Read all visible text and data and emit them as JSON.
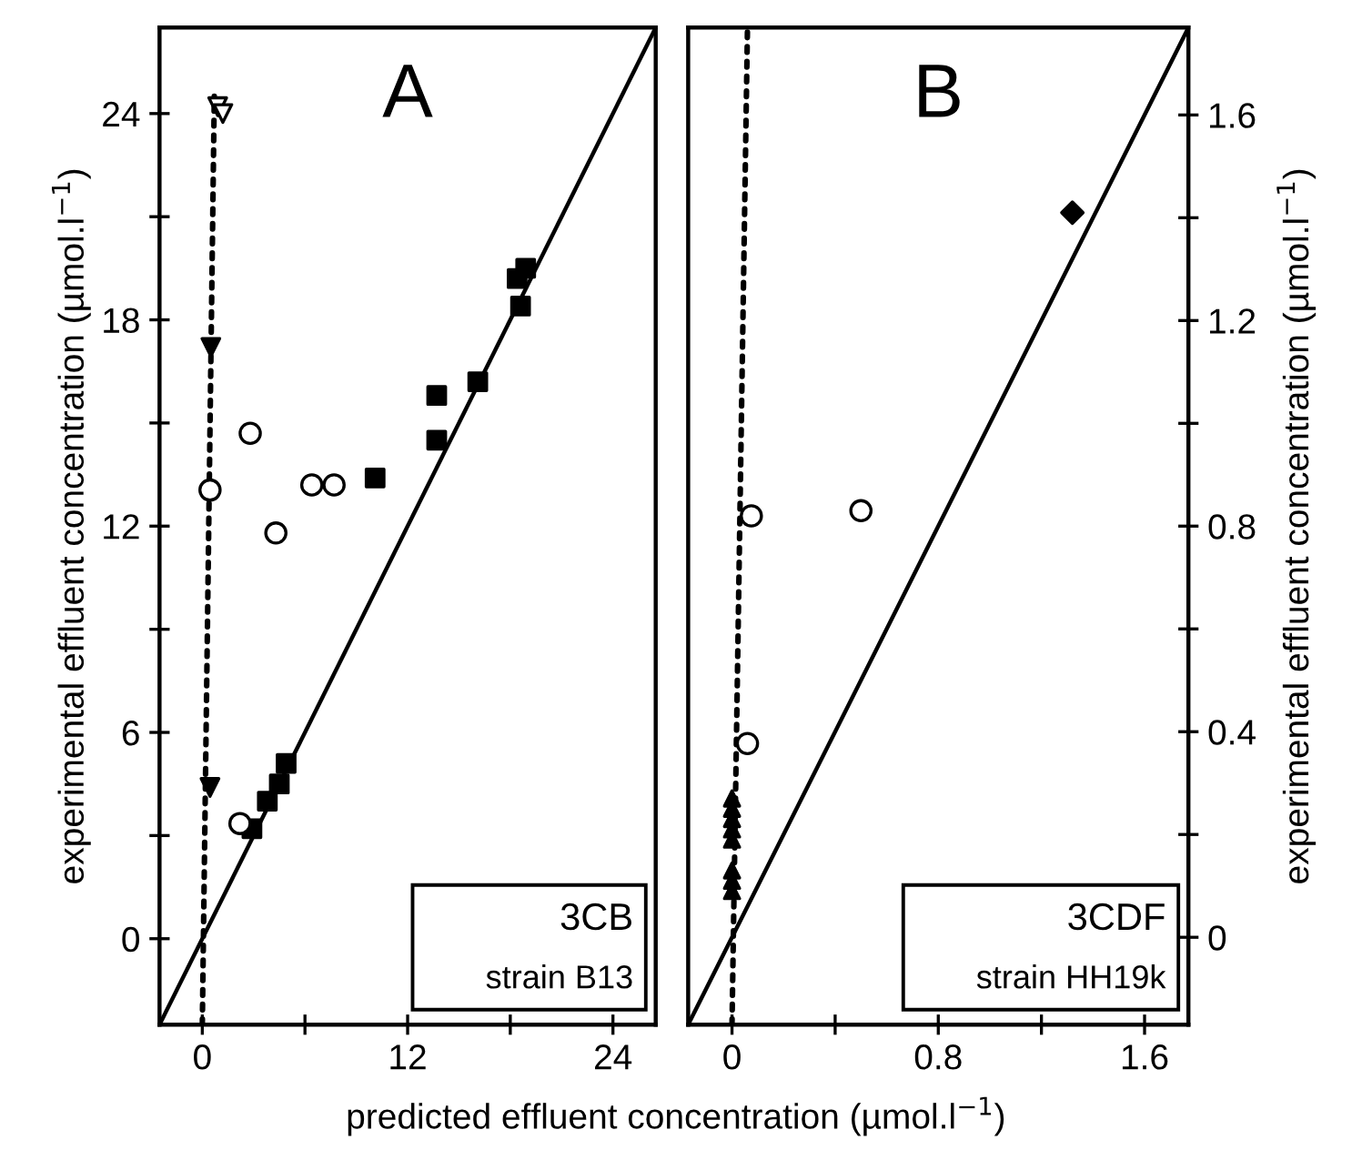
{
  "chart_data": [
    {
      "type": "scatter",
      "xlabel": "predicted effluent concentration (µmol.l$^{−1}$)",
      "ylabel": "experimental effluent concentration (µmol.l$^{−1}$)",
      "xlim": [
        -2.5,
        26.5
      ],
      "ylim": [
        -2.5,
        26.5
      ],
      "xticks": [
        0,
        {
          "value": 6,
          "label": null
        },
        12,
        {
          "value": 18,
          "label": null
        },
        24
      ],
      "yticks": [
        0,
        {
          "value": 3,
          "label": null
        },
        6,
        {
          "value": 9,
          "label": null
        },
        12,
        {
          "value": 15,
          "label": null
        },
        18,
        {
          "value": 21,
          "label": null
        },
        24
      ],
      "grid": false,
      "legend": false,
      "annotations": [
        "A",
        "3CB",
        "strain B13"
      ],
      "series": [
        {
          "type": "line",
          "color": "#000000",
          "marker": "none",
          "line_style": "solid",
          "x": [
            -2.5,
            26.5
          ],
          "values": [
            -2.5,
            26.5
          ]
        },
        {
          "type": "line",
          "color": "#000000",
          "marker": "none",
          "line_style": "dotted",
          "x": [
            0,
            0.7
          ],
          "values": [
            -2.5,
            24.5
          ]
        },
        {
          "color": "#000000",
          "marker": "square",
          "x": [
            10.1,
            13.7,
            13.7,
            16.1,
            18.4,
            18.9,
            18.6,
            4.9,
            4.5,
            3.8,
            2.9
          ],
          "values": [
            13.4,
            15.8,
            14.5,
            16.2,
            19.2,
            19.5,
            18.4,
            5.1,
            4.5,
            4.0,
            3.2
          ]
        },
        {
          "color": "#ffffff",
          "marker": "circle",
          "x": [
            2.8,
            6.4,
            7.7,
            4.3,
            2.2,
            0.45
          ],
          "values": [
            14.7,
            13.2,
            13.2,
            11.8,
            3.35,
            13.05
          ]
        },
        {
          "color": "#ffffff",
          "marker": "triangle-down",
          "x": [
            0.9,
            1.2
          ],
          "values": [
            24.2,
            24.0
          ]
        },
        {
          "color": "#000000",
          "marker": "triangle-down",
          "x": [
            0.5,
            0.45
          ],
          "values": [
            17.2,
            4.4
          ]
        }
      ]
    },
    {
      "type": "scatter",
      "ylabel": "experimental effluent concentration (µmol.l$^{−1}$)",
      "xlim": [
        -0.17,
        1.77
      ],
      "ylim": [
        -0.17,
        1.77
      ],
      "xticks": [
        0,
        {
          "value": 0.4,
          "label": null
        },
        0.8,
        {
          "value": 1.2,
          "label": null
        },
        1.6
      ],
      "yticks": [
        0,
        {
          "value": 0.2,
          "label": null
        },
        0.4,
        {
          "value": 0.6,
          "label": null
        },
        0.8,
        {
          "value": 1.0,
          "label": null
        },
        1.2,
        {
          "value": 1.4,
          "label": null
        },
        1.6
      ],
      "grid": false,
      "legend": false,
      "annotations": [
        "B",
        "3CDF",
        "strain HH19k"
      ],
      "series": [
        {
          "type": "line",
          "color": "#000000",
          "marker": "none",
          "line_style": "solid",
          "x": [
            -0.17,
            1.77
          ],
          "values": [
            -0.17,
            1.77
          ]
        },
        {
          "type": "line",
          "color": "#000000",
          "marker": "none",
          "line_style": "dotted",
          "x": [
            0,
            0.06
          ],
          "values": [
            -0.17,
            1.77
          ]
        },
        {
          "color": "#000000",
          "marker": "diamond",
          "x": [
            1.32
          ],
          "values": [
            1.41
          ]
        },
        {
          "color": "#ffffff",
          "marker": "circle",
          "x": [
            0.075,
            0.5,
            0.06
          ],
          "values": [
            0.82,
            0.83,
            0.377
          ]
        },
        {
          "color": "#000000",
          "marker": "triangle",
          "x": [
            0,
            0,
            0,
            0,
            0,
            0,
            0,
            0
          ],
          "values": [
            0.27,
            0.25,
            0.23,
            0.21,
            0.19,
            0.13,
            0.11,
            0.09
          ]
        }
      ]
    }
  ]
}
